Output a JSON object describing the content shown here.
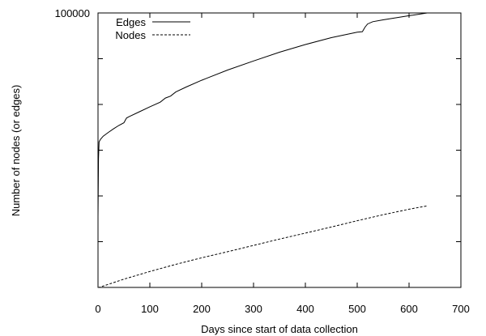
{
  "chart_data": {
    "type": "line",
    "xlabel": "Days since start of data collection",
    "ylabel": "Number of nodes (or edges)",
    "xlim": [
      0,
      700
    ],
    "x_ticks": [
      "0",
      "100",
      "200",
      "300",
      "400",
      "500",
      "600",
      "700"
    ],
    "y_tick_label": "100000",
    "y_scale": "log",
    "grid": false,
    "legend_position": "top-left",
    "series": [
      {
        "name": "Edges",
        "style": "solid",
        "color": "#000000",
        "x": [
          0,
          1,
          2,
          5,
          10,
          20,
          30,
          40,
          50,
          55,
          60,
          80,
          100,
          120,
          130,
          140,
          150,
          170,
          200,
          250,
          300,
          350,
          400,
          450,
          500,
          510,
          515,
          520,
          530,
          550,
          600,
          635
        ],
        "rel": [
          0.26,
          0.47,
          0.53,
          0.54,
          0.551,
          0.565,
          0.578,
          0.59,
          0.6,
          0.617,
          0.622,
          0.64,
          0.658,
          0.675,
          0.69,
          0.697,
          0.712,
          0.73,
          0.755,
          0.792,
          0.825,
          0.857,
          0.885,
          0.91,
          0.93,
          0.932,
          0.948,
          0.96,
          0.968,
          0.975,
          0.99,
          1.0
        ]
      },
      {
        "name": "Nodes",
        "style": "dashed",
        "color": "#000000",
        "x": [
          0,
          2,
          50,
          100,
          150,
          200,
          250,
          300,
          350,
          400,
          450,
          500,
          550,
          600,
          635
        ],
        "rel": [
          0.0,
          0.0,
          0.03,
          0.058,
          0.084,
          0.108,
          0.13,
          0.153,
          0.176,
          0.198,
          0.22,
          0.243,
          0.265,
          0.285,
          0.297
        ]
      }
    ]
  }
}
